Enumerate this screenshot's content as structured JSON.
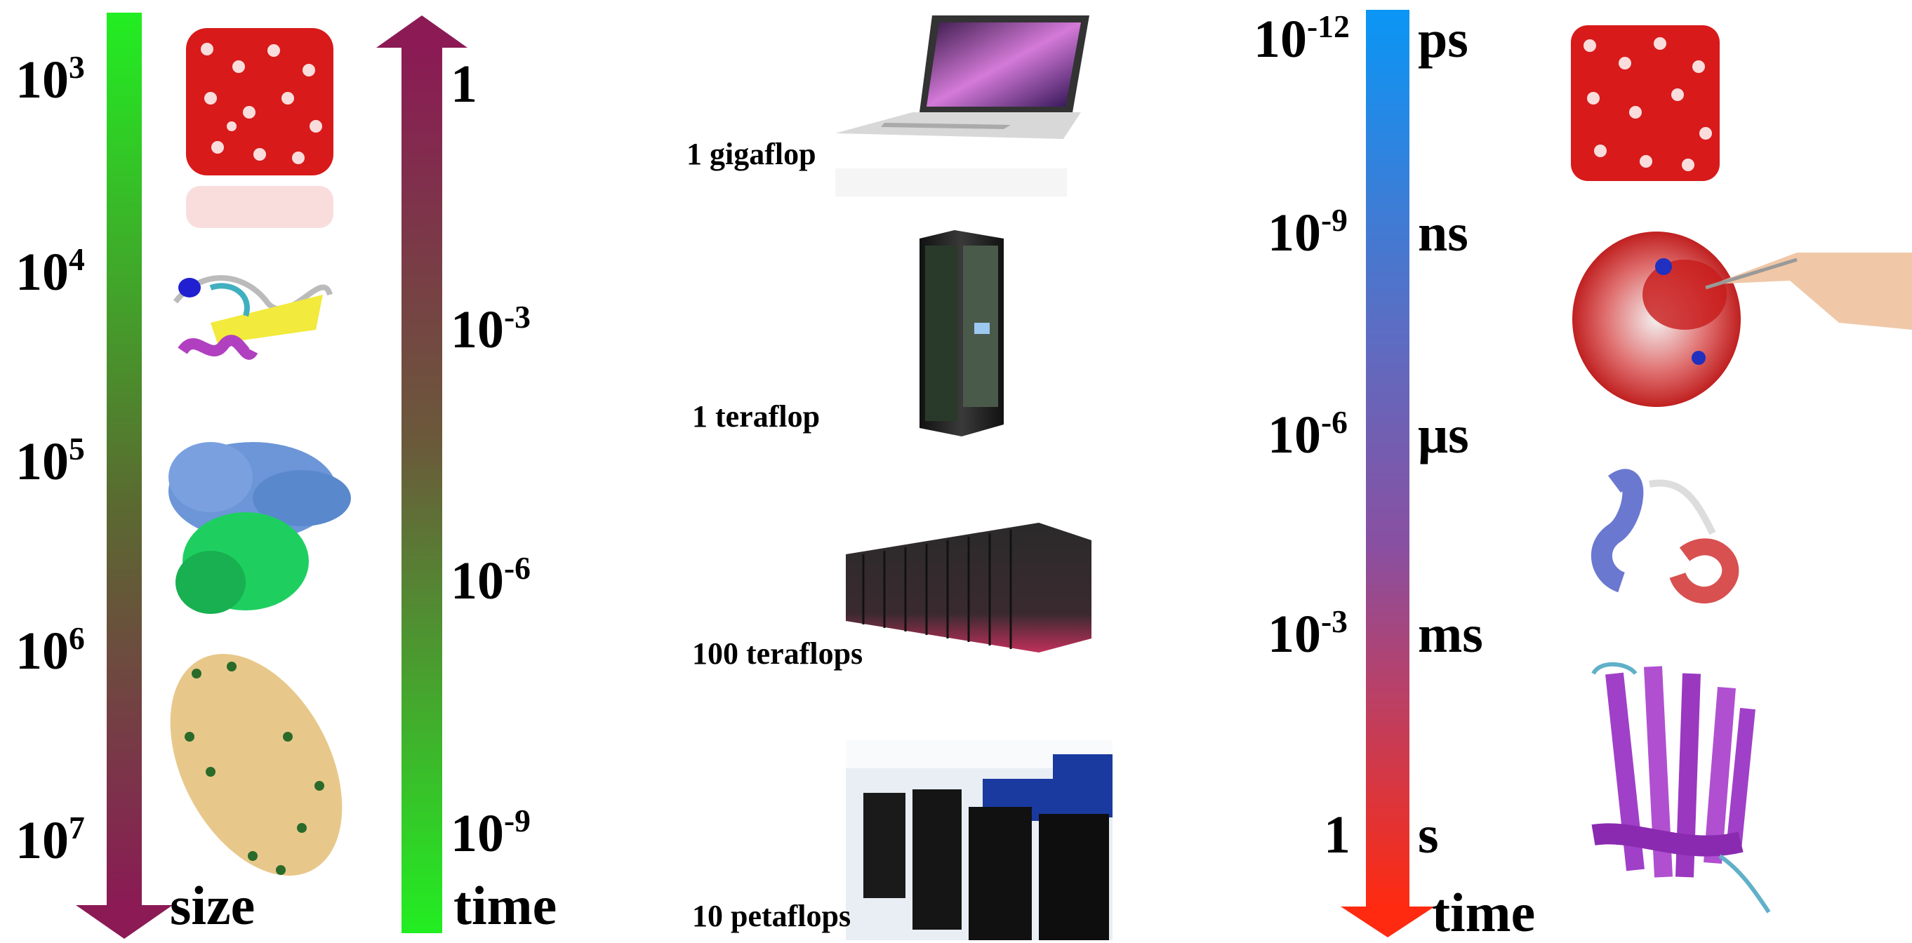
{
  "size_axis": {
    "label": "size",
    "ticks": [
      {
        "base": "10",
        "exp": "3"
      },
      {
        "base": "10",
        "exp": "4"
      },
      {
        "base": "10",
        "exp": "5"
      },
      {
        "base": "10",
        "exp": "6"
      },
      {
        "base": "10",
        "exp": "7"
      }
    ],
    "gradient_colors": [
      "#22ee22",
      "#8b1a55"
    ],
    "direction": "down"
  },
  "time_axis_left": {
    "label": "time",
    "ticks": [
      {
        "base": "1",
        "exp": ""
      },
      {
        "base": "10",
        "exp": "-3"
      },
      {
        "base": "10",
        "exp": "-6"
      },
      {
        "base": "10",
        "exp": "-9"
      }
    ],
    "gradient_colors": [
      "#8b1a55",
      "#22ee22"
    ],
    "direction": "up"
  },
  "computers": [
    {
      "label": "1 gigaflop",
      "icon": "laptop-icon"
    },
    {
      "label": "1 teraflop",
      "icon": "server-rack-icon"
    },
    {
      "label": "100 teraflops",
      "icon": "cluster-icon"
    },
    {
      "label": "10 petaflops",
      "icon": "supercomputer-room-icon"
    }
  ],
  "time_axis_right": {
    "label": "time",
    "ticks": [
      {
        "base": "10",
        "exp": "-12",
        "unit": "ps"
      },
      {
        "base": "10",
        "exp": "-9",
        "unit": "ns"
      },
      {
        "base": "10",
        "exp": "-6",
        "unit": "μs"
      },
      {
        "base": "10",
        "exp": "-3",
        "unit": "ms"
      },
      {
        "base": "1",
        "exp": "",
        "unit": "s"
      }
    ],
    "gradient_colors": [
      "#0a96f5",
      "#7a5fae",
      "#ff2a10"
    ],
    "direction": "down"
  },
  "molecules_left": [
    "water-box-icon",
    "protein-ribbon-icon",
    "ribosome-icon",
    "virus-capsid-icon"
  ],
  "molecules_right": [
    "water-box-icon",
    "protein-surface-with-hand-icon",
    "helix-peptide-icon",
    "membrane-protein-icon"
  ]
}
